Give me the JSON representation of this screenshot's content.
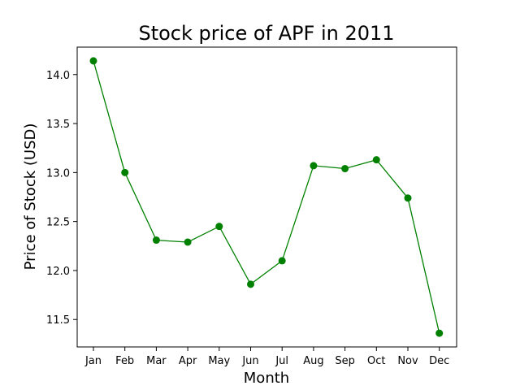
{
  "chart_data": {
    "type": "line",
    "title": "Stock price of APF in 2011",
    "xlabel": "Month",
    "ylabel": "Price of Stock (USD)",
    "categories": [
      "Jan",
      "Feb",
      "Mar",
      "Apr",
      "May",
      "Jun",
      "Jul",
      "Aug",
      "Sep",
      "Oct",
      "Nov",
      "Dec"
    ],
    "values": [
      14.14,
      13.0,
      12.31,
      12.29,
      12.45,
      11.86,
      12.1,
      13.07,
      13.04,
      13.13,
      12.74,
      11.36
    ],
    "yticks": [
      "11.5",
      "12.0",
      "12.5",
      "13.0",
      "13.5",
      "14.0"
    ],
    "ylim": [
      11.22,
      14.28
    ],
    "grid": false,
    "legend": false,
    "line_color": "#008000",
    "marker": "circle"
  }
}
